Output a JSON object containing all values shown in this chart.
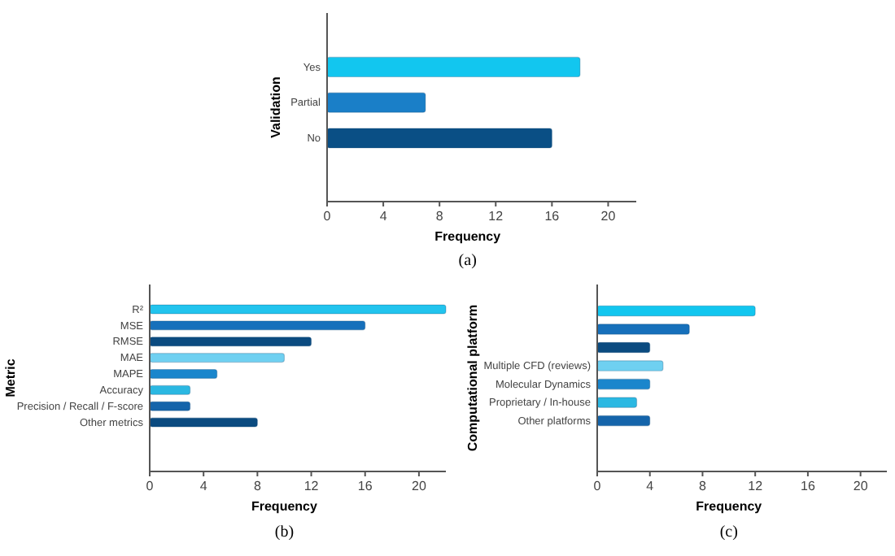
{
  "chart_data": [
    {
      "type": "bar",
      "orientation": "horizontal",
      "xlabel": "Frequency",
      "ylabel": "Validation",
      "annotations": [
        "(a)"
      ],
      "categories": [
        "Yes",
        "Partial",
        "No"
      ],
      "values": [
        18,
        7,
        16
      ],
      "colors": [
        "#12c6ef",
        "#1a7fc8",
        "#0a4f85"
      ],
      "xlim": [
        0,
        22
      ],
      "xticks": [
        0,
        4,
        8,
        12,
        16,
        20
      ],
      "grid": false
    },
    {
      "type": "bar",
      "orientation": "horizontal",
      "xlabel": "Frequency",
      "ylabel": "Metric",
      "annotations": [
        "(b)"
      ],
      "categories": [
        "R²",
        "MSE",
        "RMSE",
        "MAE",
        "MAPE",
        "Accuracy",
        "Precision / Recall / F-score",
        "Other metrics"
      ],
      "values": [
        22,
        16,
        12,
        10,
        5,
        3,
        3,
        8
      ],
      "colors": [
        "#22c4ee",
        "#1670bb",
        "#0b4b80",
        "#6fd0f1",
        "#1a86cc",
        "#2bb8e2",
        "#1464aa",
        "#0b4b80"
      ],
      "xlim": [
        0,
        22
      ],
      "xticks": [
        0,
        4,
        8,
        12,
        16,
        20
      ],
      "grid": false
    },
    {
      "type": "bar",
      "orientation": "horizontal",
      "xlabel": "Frequency",
      "ylabel": "Computational platform",
      "annotations": [
        "(c)"
      ],
      "categories": [
        null,
        null,
        null,
        "Multiple CFD (reviews)",
        "Molecular Dynamics",
        "Proprietary / In-house",
        "Other platforms"
      ],
      "values": [
        12,
        7,
        4,
        5,
        4,
        3,
        4
      ],
      "colors": [
        "#12c6ef",
        "#1670bb",
        "#0b4b80",
        "#6fd0f1",
        "#1a86cc",
        "#2bb8e2",
        "#1464aa"
      ],
      "xlim": [
        0,
        22
      ],
      "xticks": [
        0,
        4,
        8,
        12,
        16,
        20
      ],
      "grid": false
    }
  ]
}
